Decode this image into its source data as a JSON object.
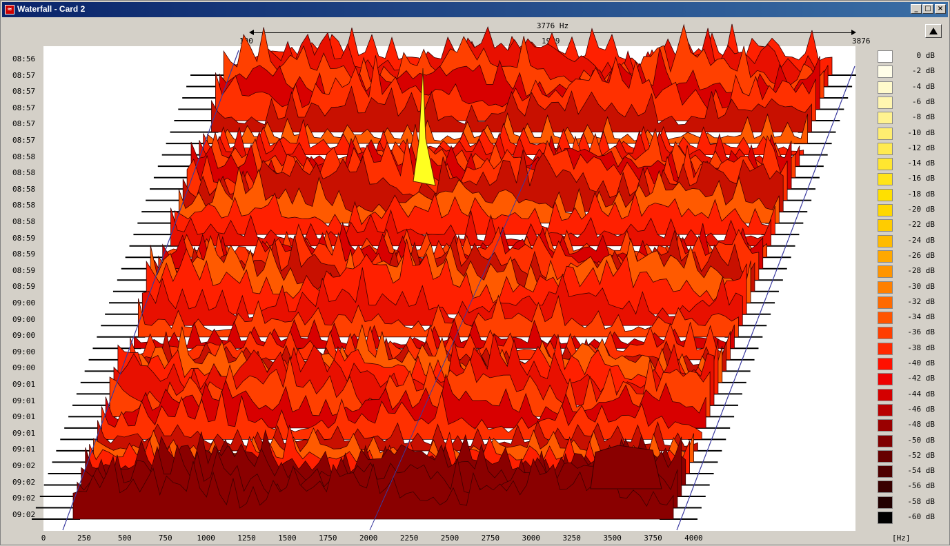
{
  "window": {
    "title": "Waterfall - Card 2",
    "icon_name": "app-icon",
    "controls": {
      "minimize": "_",
      "maximize": "□",
      "close": "×"
    }
  },
  "frequency_header": {
    "bandwidth_label": "3776 Hz",
    "start": "100",
    "center": "1989",
    "end": "3876"
  },
  "time_labels": [
    "08:56",
    "08:57",
    "08:57",
    "08:57",
    "08:57",
    "08:57",
    "08:58",
    "08:58",
    "08:58",
    "08:58",
    "08:58",
    "08:59",
    "08:59",
    "08:59",
    "08:59",
    "09:00",
    "09:00",
    "09:00",
    "09:00",
    "09:00",
    "09:01",
    "09:01",
    "09:01",
    "09:01",
    "09:01",
    "09:02",
    "09:02",
    "09:02",
    "09:02"
  ],
  "x_axis": {
    "ticks": [
      "0",
      "250",
      "500",
      "750",
      "1000",
      "1250",
      "1500",
      "1750",
      "2000",
      "2250",
      "2500",
      "2750",
      "3000",
      "3250",
      "3500",
      "3750",
      "4000"
    ],
    "unit": "[Hz]"
  },
  "legend": [
    {
      "label": "0 dB",
      "color": "#ffffff"
    },
    {
      "label": "-2 dB",
      "color": "#fffde8"
    },
    {
      "label": "-4 dB",
      "color": "#fffacc"
    },
    {
      "label": "-6 dB",
      "color": "#fff6b0"
    },
    {
      "label": "-8 dB",
      "color": "#fff290"
    },
    {
      "label": "-10 dB",
      "color": "#ffee70"
    },
    {
      "label": "-12 dB",
      "color": "#ffea50"
    },
    {
      "label": "-14 dB",
      "color": "#ffe630"
    },
    {
      "label": "-16 dB",
      "color": "#ffe418"
    },
    {
      "label": "-18 dB",
      "color": "#ffe000"
    },
    {
      "label": "-20 dB",
      "color": "#ffd800"
    },
    {
      "label": "-22 dB",
      "color": "#ffcc00"
    },
    {
      "label": "-24 dB",
      "color": "#ffbb00"
    },
    {
      "label": "-26 dB",
      "color": "#ffa800"
    },
    {
      "label": "-28 dB",
      "color": "#ff9500"
    },
    {
      "label": "-30 dB",
      "color": "#ff8000"
    },
    {
      "label": "-32 dB",
      "color": "#ff6a00"
    },
    {
      "label": "-34 dB",
      "color": "#ff5400"
    },
    {
      "label": "-36 dB",
      "color": "#ff3e00"
    },
    {
      "label": "-38 dB",
      "color": "#ff2800"
    },
    {
      "label": "-40 dB",
      "color": "#ff1000"
    },
    {
      "label": "-42 dB",
      "color": "#ee0000"
    },
    {
      "label": "-44 dB",
      "color": "#d40000"
    },
    {
      "label": "-46 dB",
      "color": "#b80000"
    },
    {
      "label": "-48 dB",
      "color": "#9a0000"
    },
    {
      "label": "-50 dB",
      "color": "#800000"
    },
    {
      "label": "-52 dB",
      "color": "#660000"
    },
    {
      "label": "-54 dB",
      "color": "#4e0000"
    },
    {
      "label": "-56 dB",
      "color": "#380000"
    },
    {
      "label": "-58 dB",
      "color": "#220000"
    },
    {
      "label": "-60 dB",
      "color": "#000000"
    }
  ],
  "colors": {
    "plot_background": "#ffffff",
    "surface_base": "#e82000",
    "surface_dark": "#8a0000",
    "surface_orange": "#ff6000",
    "peak_yellow": "#ffff20",
    "guide_line": "#3a3aa0",
    "row_line": "#000000"
  },
  "scroll": {
    "icon_name": "up-arrow-icon"
  }
}
